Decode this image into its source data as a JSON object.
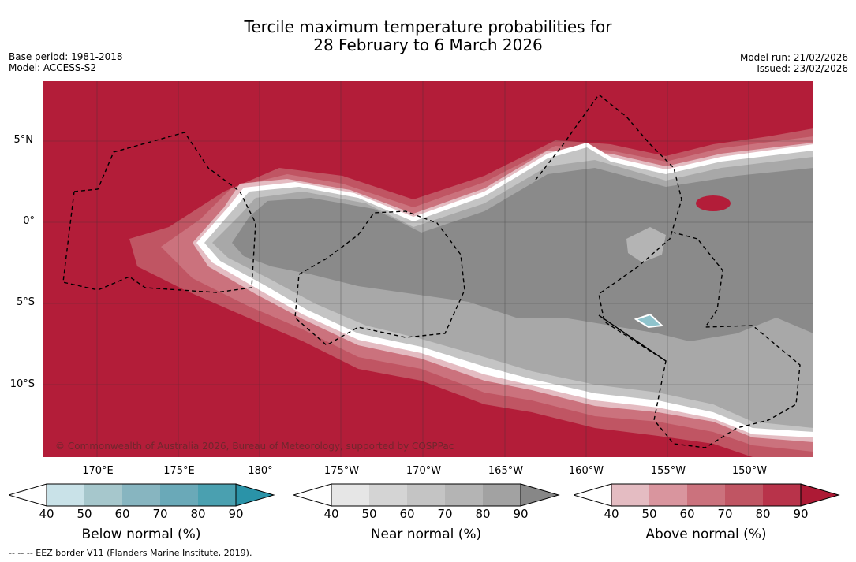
{
  "title": {
    "line1": "Tercile maximum temperature probabilities for",
    "line2": "28 February to 6 March 2026"
  },
  "meta_left": {
    "base_period": "Base period: 1981-2018",
    "model": "Model: ACCESS-S2"
  },
  "meta_right": {
    "model_run": "Model run: 21/02/2026",
    "issued": "Issued: 23/02/2026"
  },
  "map": {
    "copyright": "© Commonwealth of Australia 2026, Bureau of Meteorology, supported by COSPPac",
    "lat_labels": [
      "5°N",
      "0°",
      "5°S",
      "10°S"
    ],
    "lon_labels": [
      "170°E",
      "175°E",
      "180°",
      "175°W",
      "170°W",
      "165°W",
      "160°W",
      "155°W",
      "150°W"
    ],
    "colors": {
      "above_dominant": "#b31d39",
      "near_dominant": "#8a8a8a",
      "near_light": "#a8a8a8",
      "below_spot": "#8fc3cc",
      "ocean_bg": "#b31d39"
    }
  },
  "colorbars": {
    "below": {
      "label": "Below normal (%)",
      "ticks": [
        "40",
        "50",
        "60",
        "70",
        "80",
        "90"
      ],
      "colors": [
        "#ffffff",
        "#c9e2e8",
        "#a6c7cc",
        "#87b5c0",
        "#6aa9b8",
        "#4aa0b0",
        "#2a93a8"
      ]
    },
    "near": {
      "label": "Near normal (%)",
      "ticks": [
        "40",
        "50",
        "60",
        "70",
        "80",
        "90"
      ],
      "colors": [
        "#ffffff",
        "#e6e6e6",
        "#d4d4d4",
        "#c4c4c4",
        "#b4b4b4",
        "#a2a2a2",
        "#878787"
      ]
    },
    "above": {
      "label": "Above normal (%)",
      "ticks": [
        "40",
        "50",
        "60",
        "70",
        "80",
        "90"
      ],
      "colors": [
        "#ffffff",
        "#e4bcc2",
        "#d9959e",
        "#cb727d",
        "#c05563",
        "#b8334a",
        "#ad1a35"
      ]
    }
  },
  "footer": "--  --  -- EEZ border V11 (Flanders Marine Institute, 2019)."
}
